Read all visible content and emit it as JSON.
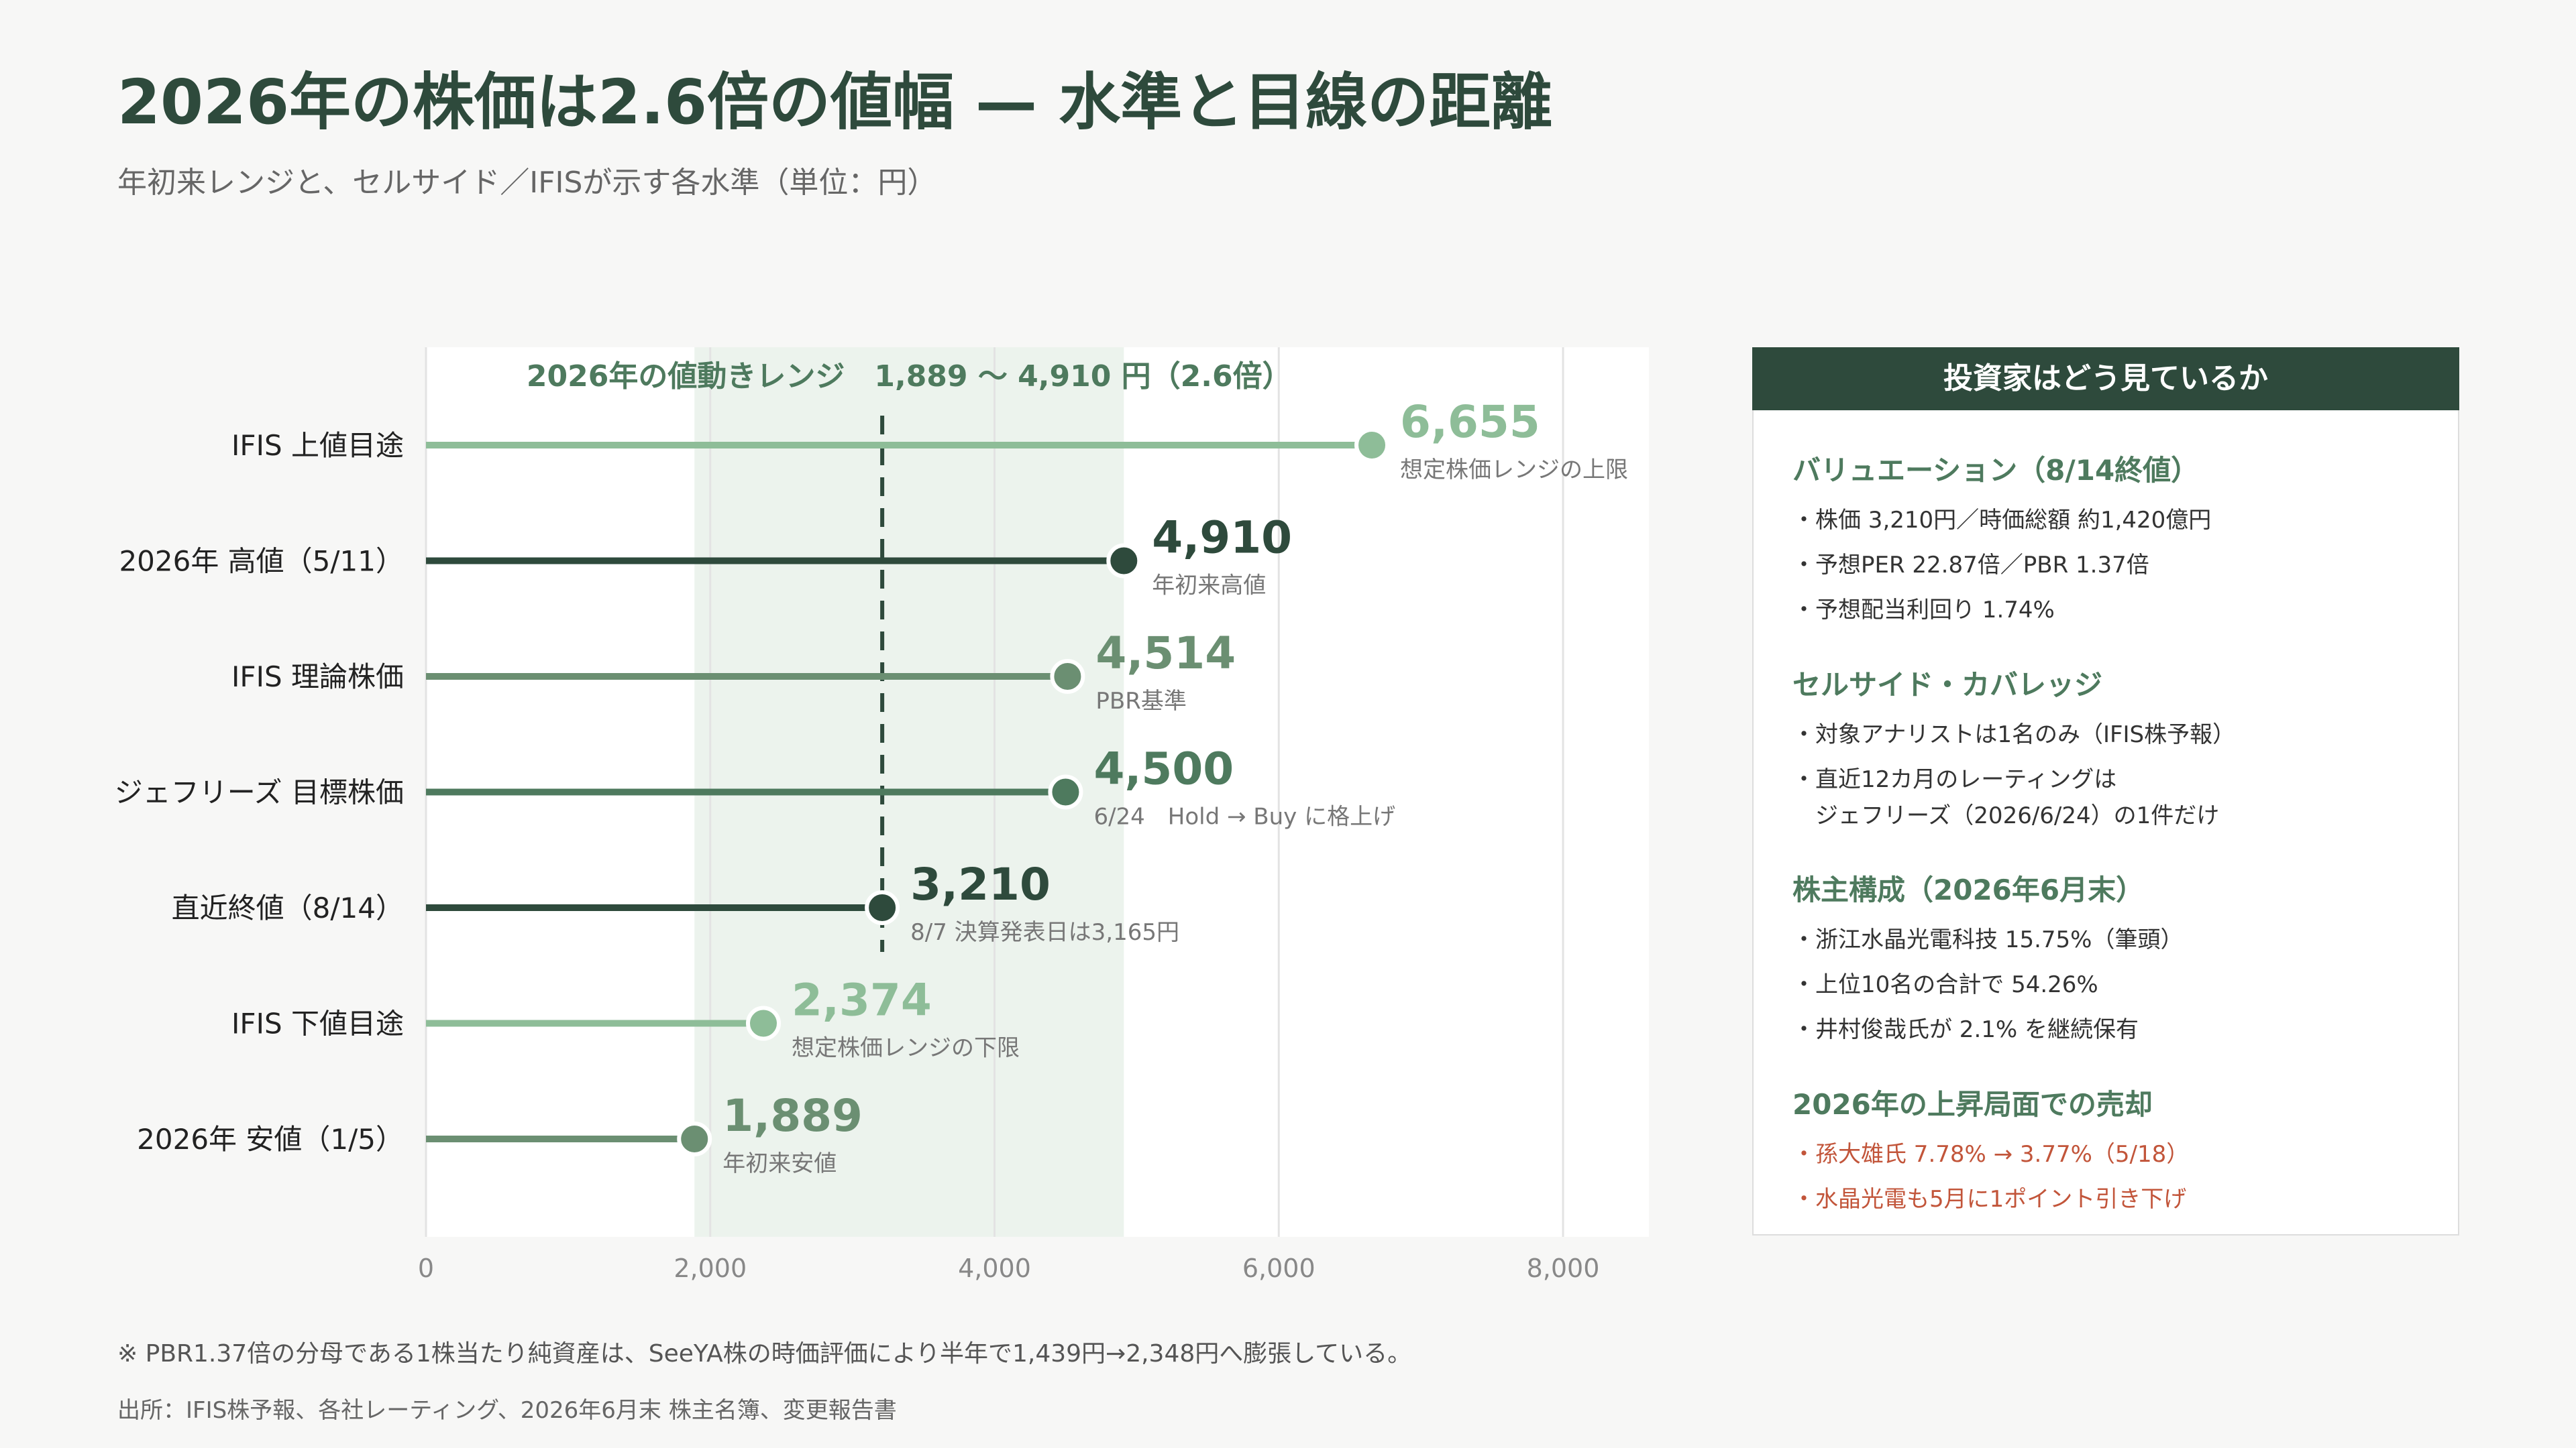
{
  "title": "2026年の株価は2.6倍の値幅 — 水準と目線の距離",
  "subtitle": "年初来レンジと、セルサイド／IFISが示す各水準（単位：円）",
  "chart_data": {
    "type": "bar",
    "orientation": "horizontal",
    "unit": "円",
    "xlim": [
      0,
      8600
    ],
    "xticks": [
      0,
      2000,
      4000,
      6000,
      8000
    ],
    "xtick_labels": [
      "0",
      "2,000",
      "4,000",
      "6,000",
      "8,000"
    ],
    "grid": true,
    "range": {
      "low": 1889,
      "high": 4910,
      "label": "2026年の値動きレンジ　1,889 〜 4,910 円（2.6倍）"
    },
    "current_line": 3210,
    "categories": [
      "IFIS 上値目途",
      "2026年 高値（5/11）",
      "IFIS 理論株価",
      "ジェフリーズ 目標株価",
      "直近終値（8/14）",
      "IFIS 下値目途",
      "2026年 安値（1/5）"
    ],
    "values": [
      6655,
      4910,
      4514,
      4500,
      3210,
      2374,
      1889
    ],
    "value_labels": [
      "6,655",
      "4,910",
      "4,514",
      "4,500",
      "3,210",
      "2,374",
      "1,889"
    ],
    "notes": [
      "想定株価レンジの上限",
      "年初来高値",
      "PBR基準",
      "6/24　Hold → Buy に格上げ",
      "8/7 決算発表日は3,165円",
      "想定株価レンジの下限",
      "年初来安値"
    ],
    "colors": [
      "#8ebd98",
      "#2e4a3c",
      "#6b8f72",
      "#4e7a5e",
      "#2e4a3c",
      "#8ebd98",
      "#6b8f72"
    ]
  },
  "panel": {
    "header": "投資家はどう見ているか",
    "sections": [
      {
        "title": "バリュエーション（8/14終値）",
        "items": [
          "・株価 3,210円／時価総額 約1,420億円",
          "・予想PER 22.87倍／PBR 1.37倍",
          "・予想配当利回り 1.74%"
        ]
      },
      {
        "title": "セルサイド・カバレッジ",
        "items": [
          "・対象アナリストは1名のみ（IFIS株予報）",
          "・直近12カ月のレーティングは\n　ジェフリーズ（2026/6/24）の1件だけ"
        ]
      },
      {
        "title": "株主構成（2026年6月末）",
        "items": [
          "・浙江水晶光電科技 15.75%（筆頭）",
          "・上位10名の合計で 54.26%",
          "・井村俊哉氏が 2.1% を継続保有"
        ]
      },
      {
        "title": "2026年の上昇局面での売却",
        "items": [
          "・孫大雄氏 7.78% → 3.77%（5/18）",
          "・水晶光電も5月に1ポイント引き下げ"
        ],
        "alert": true
      }
    ]
  },
  "footnote": "※ PBR1.37倍の分母である1株当たり純資産は、SeeYA株の時価評価により半年で1,439円→2,348円へ膨張している。",
  "source": "出所：IFIS株予報、各社レーティング、2026年6月末 株主名簿、変更報告書"
}
